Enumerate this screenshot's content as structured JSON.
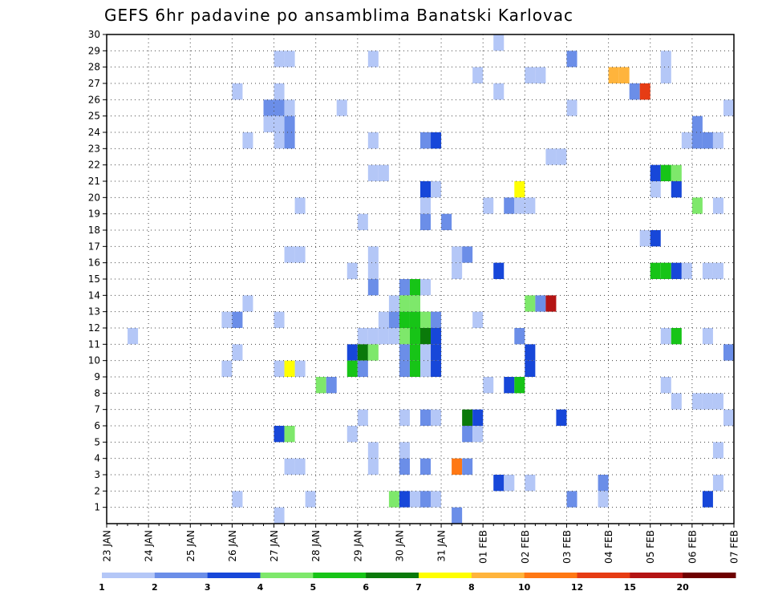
{
  "chart_data": {
    "type": "heatmap",
    "title": "GEFS 6hr padavine po ansamblima Banatski Karlovac",
    "xlabel": "",
    "ylabel": "",
    "x_tick_labels": [
      "23 JAN",
      "24 JAN",
      "25 JAN",
      "26 JAN",
      "27 JAN",
      "28 JAN",
      "29 JAN",
      "30 JAN",
      "31 JAN",
      "01 FEB",
      "02 FEB",
      "03 FEB",
      "04 FEB",
      "05 FEB",
      "06 FEB",
      "07 FEB"
    ],
    "x_start": "2021-01-23T00:00",
    "x_end": "2021-02-07T00:00",
    "time_step_hours": 6,
    "y_tick_labels": [
      1,
      2,
      3,
      4,
      5,
      6,
      7,
      8,
      9,
      10,
      11,
      12,
      13,
      14,
      15,
      16,
      17,
      18,
      19,
      20,
      21,
      22,
      23,
      24,
      25,
      26,
      27,
      28,
      29,
      30
    ],
    "ylim": [
      0,
      30
    ],
    "grid": true,
    "legend": "bottom colorbar",
    "colorbar": {
      "labels": [
        "1",
        "2",
        "3",
        "4",
        "5",
        "6",
        "7",
        "8",
        "10",
        "12",
        "15",
        "20"
      ],
      "colors": [
        "#b4c7f7",
        "#6b8ee8",
        "#1747d9",
        "#7ee86b",
        "#17c417",
        "#0a7a0a",
        "#ffff00",
        "#ffb43c",
        "#ff7814",
        "#e63c14",
        "#b41414",
        "#6e0000"
      ]
    },
    "cells": [
      [
        "01 FEB 06:00",
        30,
        0
      ],
      [
        "27 JAN 00:00",
        29,
        0
      ],
      [
        "27 JAN 06:00",
        29,
        0
      ],
      [
        "29 JAN 06:00",
        29,
        0
      ],
      [
        "03 FEB 00:00",
        29,
        1
      ],
      [
        "05 FEB 06:00",
        29,
        0
      ],
      [
        "31 JAN 18:00",
        28,
        0
      ],
      [
        "02 FEB 00:00",
        28,
        0
      ],
      [
        "02 FEB 06:00",
        28,
        0
      ],
      [
        "04 FEB 00:00",
        28,
        7
      ],
      [
        "04 FEB 06:00",
        28,
        7
      ],
      [
        "05 FEB 06:00",
        28,
        0
      ],
      [
        "26 JAN 00:00",
        27,
        0
      ],
      [
        "27 JAN 00:00",
        27,
        0
      ],
      [
        "01 FEB 06:00",
        27,
        0
      ],
      [
        "04 FEB 12:00",
        27,
        1
      ],
      [
        "04 FEB 18:00",
        27,
        9
      ],
      [
        "26 JAN 18:00",
        26,
        1
      ],
      [
        "27 JAN 00:00",
        26,
        1
      ],
      [
        "27 JAN 06:00",
        26,
        0
      ],
      [
        "28 JAN 12:00",
        26,
        0
      ],
      [
        "03 FEB 00:00",
        26,
        0
      ],
      [
        "06 FEB 18:00",
        26,
        0
      ],
      [
        "26 JAN 18:00",
        25,
        0
      ],
      [
        "27 JAN 00:00",
        25,
        0
      ],
      [
        "27 JAN 06:00",
        25,
        1
      ],
      [
        "06 FEB 00:00",
        25,
        1
      ],
      [
        "26 JAN 06:00",
        24,
        0
      ],
      [
        "27 JAN 00:00",
        24,
        0
      ],
      [
        "27 JAN 06:00",
        24,
        1
      ],
      [
        "29 JAN 06:00",
        24,
        0
      ],
      [
        "30 JAN 12:00",
        24,
        1
      ],
      [
        "30 JAN 18:00",
        24,
        2
      ],
      [
        "05 FEB 18:00",
        24,
        0
      ],
      [
        "06 FEB 00:00",
        24,
        1
      ],
      [
        "06 FEB 06:00",
        24,
        1
      ],
      [
        "06 FEB 12:00",
        24,
        0
      ],
      [
        "02 FEB 12:00",
        23,
        0
      ],
      [
        "02 FEB 18:00",
        23,
        0
      ],
      [
        "29 JAN 06:00",
        22,
        0
      ],
      [
        "29 JAN 12:00",
        22,
        0
      ],
      [
        "05 FEB 00:00",
        22,
        2
      ],
      [
        "05 FEB 06:00",
        22,
        4
      ],
      [
        "05 FEB 12:00",
        22,
        3
      ],
      [
        "30 JAN 12:00",
        21,
        2
      ],
      [
        "30 JAN 18:00",
        21,
        0
      ],
      [
        "01 FEB 18:00",
        21,
        6
      ],
      [
        "05 FEB 00:00",
        21,
        0
      ],
      [
        "05 FEB 12:00",
        21,
        2
      ],
      [
        "27 JAN 12:00",
        20,
        0
      ],
      [
        "30 JAN 12:00",
        20,
        0
      ],
      [
        "01 FEB 00:00",
        20,
        0
      ],
      [
        "01 FEB 12:00",
        20,
        1
      ],
      [
        "01 FEB 18:00",
        20,
        0
      ],
      [
        "02 FEB 00:00",
        20,
        0
      ],
      [
        "06 FEB 00:00",
        20,
        3
      ],
      [
        "06 FEB 12:00",
        20,
        0
      ],
      [
        "29 JAN 00:00",
        19,
        0
      ],
      [
        "30 JAN 12:00",
        19,
        1
      ],
      [
        "31 JAN 00:00",
        19,
        1
      ],
      [
        "04 FEB 18:00",
        18,
        0
      ],
      [
        "05 FEB 00:00",
        18,
        2
      ],
      [
        "27 JAN 06:00",
        17,
        0
      ],
      [
        "27 JAN 12:00",
        17,
        0
      ],
      [
        "29 JAN 06:00",
        17,
        0
      ],
      [
        "31 JAN 06:00",
        17,
        0
      ],
      [
        "31 JAN 12:00",
        17,
        1
      ],
      [
        "28 JAN 18:00",
        16,
        0
      ],
      [
        "29 JAN 06:00",
        16,
        0
      ],
      [
        "31 JAN 06:00",
        16,
        0
      ],
      [
        "01 FEB 06:00",
        16,
        2
      ],
      [
        "05 FEB 00:00",
        16,
        4
      ],
      [
        "05 FEB 06:00",
        16,
        4
      ],
      [
        "05 FEB 12:00",
        16,
        2
      ],
      [
        "05 FEB 18:00",
        16,
        0
      ],
      [
        "06 FEB 06:00",
        16,
        0
      ],
      [
        "06 FEB 12:00",
        16,
        0
      ],
      [
        "29 JAN 06:00",
        15,
        1
      ],
      [
        "30 JAN 00:00",
        15,
        1
      ],
      [
        "30 JAN 06:00",
        15,
        4
      ],
      [
        "30 JAN 12:00",
        15,
        0
      ],
      [
        "26 JAN 06:00",
        14,
        0
      ],
      [
        "29 JAN 18:00",
        14,
        0
      ],
      [
        "30 JAN 00:00",
        14,
        3
      ],
      [
        "30 JAN 06:00",
        14,
        3
      ],
      [
        "02 FEB 00:00",
        14,
        3
      ],
      [
        "02 FEB 06:00",
        14,
        1
      ],
      [
        "02 FEB 12:00",
        14,
        10
      ],
      [
        "25 JAN 18:00",
        13,
        0
      ],
      [
        "26 JAN 00:00",
        13,
        1
      ],
      [
        "27 JAN 00:00",
        13,
        0
      ],
      [
        "29 JAN 12:00",
        13,
        0
      ],
      [
        "29 JAN 18:00",
        13,
        1
      ],
      [
        "30 JAN 00:00",
        13,
        4
      ],
      [
        "30 JAN 06:00",
        13,
        4
      ],
      [
        "30 JAN 12:00",
        13,
        3
      ],
      [
        "30 JAN 18:00",
        13,
        1
      ],
      [
        "31 JAN 18:00",
        13,
        0
      ],
      [
        "23 JAN 12:00",
        12,
        0
      ],
      [
        "29 JAN 00:00",
        12,
        0
      ],
      [
        "29 JAN 06:00",
        12,
        0
      ],
      [
        "29 JAN 12:00",
        12,
        0
      ],
      [
        "29 JAN 18:00",
        12,
        0
      ],
      [
        "30 JAN 00:00",
        12,
        3
      ],
      [
        "30 JAN 06:00",
        12,
        4
      ],
      [
        "30 JAN 12:00",
        12,
        5
      ],
      [
        "30 JAN 18:00",
        12,
        2
      ],
      [
        "01 FEB 18:00",
        12,
        1
      ],
      [
        "05 FEB 06:00",
        12,
        0
      ],
      [
        "05 FEB 12:00",
        12,
        4
      ],
      [
        "06 FEB 06:00",
        12,
        0
      ],
      [
        "26 JAN 00:00",
        11,
        0
      ],
      [
        "28 JAN 18:00",
        11,
        2
      ],
      [
        "29 JAN 00:00",
        11,
        5
      ],
      [
        "29 JAN 06:00",
        11,
        3
      ],
      [
        "30 JAN 00:00",
        11,
        1
      ],
      [
        "30 JAN 06:00",
        11,
        4
      ],
      [
        "30 JAN 12:00",
        11,
        0
      ],
      [
        "30 JAN 18:00",
        11,
        2
      ],
      [
        "02 FEB 00:00",
        11,
        2
      ],
      [
        "06 FEB 18:00",
        11,
        1
      ],
      [
        "25 JAN 18:00",
        10,
        0
      ],
      [
        "27 JAN 00:00",
        10,
        0
      ],
      [
        "27 JAN 06:00",
        10,
        6
      ],
      [
        "27 JAN 12:00",
        10,
        0
      ],
      [
        "28 JAN 18:00",
        10,
        4
      ],
      [
        "29 JAN 00:00",
        10,
        1
      ],
      [
        "01 FEB 00:00",
        9,
        0
      ],
      [
        "01 FEB 12:00",
        9,
        2
      ],
      [
        "01 FEB 18:00",
        9,
        4
      ],
      [
        "05 FEB 06:00",
        9,
        0
      ],
      [
        "05 FEB 12:00",
        8,
        0
      ],
      [
        "06 FEB 00:00",
        8,
        0
      ],
      [
        "06 FEB 06:00",
        8,
        0
      ],
      [
        "06 FEB 12:00",
        8,
        0
      ],
      [
        "29 JAN 00:00",
        7,
        0
      ],
      [
        "30 JAN 00:00",
        7,
        0
      ],
      [
        "30 JAN 12:00",
        7,
        1
      ],
      [
        "30 JAN 18:00",
        7,
        0
      ],
      [
        "31 JAN 12:00",
        7,
        5
      ],
      [
        "31 JAN 18:00",
        7,
        2
      ],
      [
        "02 FEB 18:00",
        7,
        2
      ],
      [
        "06 FEB 18:00",
        7,
        0
      ],
      [
        "27 JAN 00:00",
        6,
        2
      ],
      [
        "27 JAN 06:00",
        6,
        3
      ],
      [
        "28 JAN 18:00",
        6,
        0
      ],
      [
        "31 JAN 12:00",
        6,
        1
      ],
      [
        "31 JAN 18:00",
        6,
        0
      ],
      [
        "29 JAN 06:00",
        5,
        0
      ],
      [
        "30 JAN 00:00",
        5,
        0
      ],
      [
        "06 FEB 12:00",
        5,
        0
      ],
      [
        "27 JAN 06:00",
        4,
        0
      ],
      [
        "27 JAN 12:00",
        4,
        0
      ],
      [
        "29 JAN 06:00",
        4,
        0
      ],
      [
        "30 JAN 00:00",
        4,
        1
      ],
      [
        "30 JAN 12:00",
        4,
        1
      ],
      [
        "31 JAN 06:00",
        4,
        8
      ],
      [
        "31 JAN 12:00",
        4,
        1
      ],
      [
        "01 FEB 06:00",
        3,
        2
      ],
      [
        "01 FEB 12:00",
        3,
        0
      ],
      [
        "02 FEB 00:00",
        3,
        0
      ],
      [
        "03 FEB 18:00",
        3,
        1
      ],
      [
        "06 FEB 12:00",
        3,
        0
      ],
      [
        "26 JAN 00:00",
        2,
        0
      ],
      [
        "29 JAN 18:00",
        2,
        3
      ],
      [
        "30 JAN 00:00",
        2,
        2
      ],
      [
        "30 JAN 06:00",
        2,
        0
      ],
      [
        "30 JAN 12:00",
        2,
        1
      ],
      [
        "30 JAN 18:00",
        2,
        0
      ],
      [
        "03 FEB 00:00",
        2,
        1
      ],
      [
        "03 FEB 18:00",
        2,
        0
      ],
      [
        "06 FEB 06:00",
        2,
        2
      ],
      [
        "27 JAN 00:00",
        1,
        0
      ],
      [
        "31 JAN 06:00",
        1,
        1
      ],
      [
        "27 JAN 18:00",
        2,
        0
      ],
      [
        "28 JAN 00:00",
        9,
        3
      ],
      [
        "28 JAN 06:00",
        9,
        1
      ],
      [
        "30 JAN 00:00",
        10,
        1
      ],
      [
        "30 JAN 06:00",
        10,
        4
      ],
      [
        "30 JAN 12:00",
        10,
        0
      ],
      [
        "30 JAN 18:00",
        10,
        2
      ],
      [
        "02 FEB 00:00",
        10,
        2
      ],
      [
        "07 FEB 00:00",
        10,
        0
      ]
    ]
  }
}
